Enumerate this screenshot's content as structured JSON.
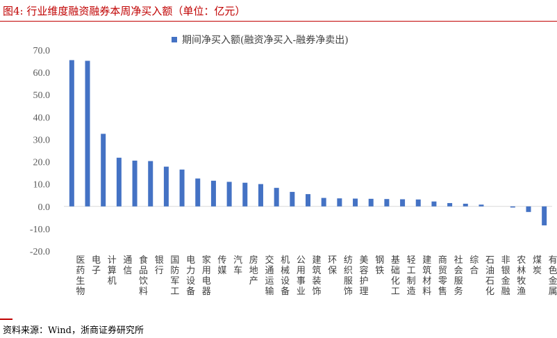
{
  "title": "图4:   行业维度融资融券本周净买入额（单位：亿元）",
  "source": "资料来源：Wind，浙商证券研究所",
  "chart_data": {
    "type": "bar",
    "title": "",
    "xlabel": "",
    "ylabel": "",
    "ylim": [
      -20,
      70
    ],
    "yticks": [
      "70.0",
      "60.0",
      "50.0",
      "40.0",
      "30.0",
      "20.0",
      "10.0",
      "0.0",
      "-10.0",
      "-20.0"
    ],
    "grid": false,
    "legend_position": "top",
    "color": "#4472c4",
    "categories": [
      "医药生物",
      "电子",
      "计算机",
      "通信",
      "食品饮料",
      "银行",
      "国防军工",
      "电力设备",
      "家用电器",
      "传媒",
      "汽车",
      "房地产",
      "交通运输",
      "机械设备",
      "公用事业",
      "建筑装饰",
      "环保",
      "纺织服饰",
      "美容护理",
      "钢铁",
      "基础化工",
      "轻工制造",
      "建筑材料",
      "商贸零售",
      "社会服务",
      "综合",
      "石油石化",
      "非银金融",
      "农林牧渔",
      "煤炭",
      "有色金属"
    ],
    "series": [
      {
        "name": "期间净买入额(融资净买入-融券净卖出)",
        "values": [
          65.5,
          65.2,
          32.5,
          21.8,
          20.5,
          20.3,
          17.8,
          16.5,
          12.5,
          11.5,
          11.0,
          10.6,
          10.0,
          8.3,
          6.5,
          5.5,
          3.8,
          3.6,
          3.5,
          3.4,
          3.3,
          3.2,
          3.1,
          2.2,
          1.5,
          1.2,
          0.8,
          0.0,
          -0.5,
          -2.5,
          -8.5
        ]
      }
    ]
  }
}
